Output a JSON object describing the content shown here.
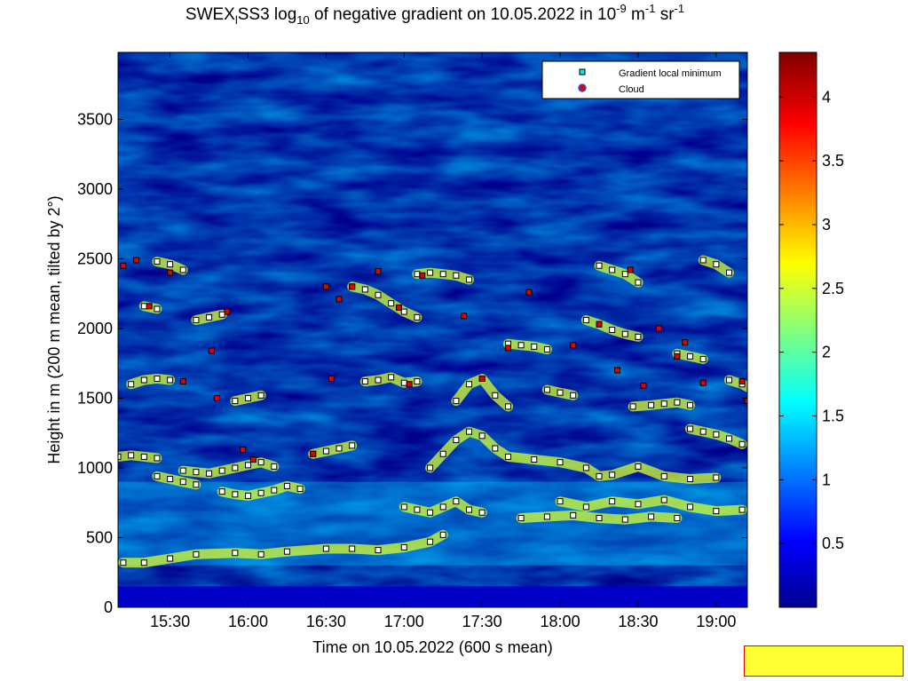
{
  "chart_data": {
    "type": "heatmap",
    "title_parts": {
      "prefix": "SWEX",
      "sub1": "l",
      "middle": "SS3 log",
      "sub2": "10",
      "after": " of negative gradient on 10.05.2022 in 10",
      "exp1": "-9",
      "unit1": " m",
      "exp2": "-1",
      "unit2": " sr",
      "exp3": "-1"
    },
    "xlabel": "Time on 10.05.2022 (600 s mean)",
    "ylabel": "Height in m (200 m mean, tilted by 2°)",
    "x_ticks": [
      "15:30",
      "16:00",
      "16:30",
      "17:00",
      "17:30",
      "18:00",
      "18:30",
      "19:00"
    ],
    "x_range_minutes": [
      910,
      1152
    ],
    "y_ticks": [
      0,
      500,
      1000,
      1500,
      2000,
      2500,
      3000,
      3500
    ],
    "y_range": [
      0,
      3980
    ],
    "colorbar": {
      "ticks": [
        "0.5",
        "1",
        "1.5",
        "2",
        "2.5",
        "3",
        "3.5",
        "4"
      ],
      "range": [
        0,
        4.35
      ],
      "colormap": "jet"
    },
    "legend": {
      "placement": "top-right",
      "entries": [
        {
          "label": "Gradient local minimum",
          "marker": "square",
          "color": "#00e5ee"
        },
        {
          "label": "Cloud",
          "marker": "circle",
          "color": "#e00000"
        }
      ]
    },
    "gradient_minimum_layers": [
      {
        "points": [
          [
            910,
            1080
          ],
          [
            915,
            1090
          ],
          [
            920,
            1080
          ],
          [
            925,
            1070
          ]
        ]
      },
      {
        "points": [
          [
            935,
            980
          ],
          [
            940,
            970
          ],
          [
            945,
            960
          ],
          [
            950,
            980
          ],
          [
            955,
            1000
          ],
          [
            960,
            1020
          ],
          [
            965,
            1040
          ],
          [
            970,
            1010
          ]
        ]
      },
      {
        "points": [
          [
            912,
            320
          ],
          [
            920,
            320
          ],
          [
            930,
            350
          ],
          [
            940,
            380
          ],
          [
            955,
            390
          ],
          [
            965,
            380
          ],
          [
            975,
            400
          ],
          [
            990,
            420
          ],
          [
            1000,
            420
          ],
          [
            1010,
            410
          ],
          [
            1020,
            430
          ],
          [
            1030,
            470
          ],
          [
            1035,
            520
          ]
        ]
      },
      {
        "points": [
          [
            925,
            940
          ],
          [
            930,
            920
          ],
          [
            935,
            900
          ],
          [
            940,
            880
          ]
        ]
      },
      {
        "points": [
          [
            950,
            830
          ],
          [
            955,
            810
          ],
          [
            960,
            800
          ],
          [
            965,
            820
          ],
          [
            970,
            840
          ],
          [
            975,
            870
          ],
          [
            980,
            850
          ]
        ]
      },
      {
        "points": [
          [
            985,
            1100
          ],
          [
            990,
            1120
          ],
          [
            995,
            1140
          ],
          [
            1000,
            1160
          ]
        ]
      },
      {
        "points": [
          [
            1020,
            720
          ],
          [
            1025,
            700
          ],
          [
            1030,
            680
          ],
          [
            1035,
            720
          ],
          [
            1040,
            760
          ],
          [
            1045,
            700
          ],
          [
            1050,
            680
          ]
        ]
      },
      {
        "points": [
          [
            1030,
            1000
          ],
          [
            1035,
            1100
          ],
          [
            1040,
            1200
          ],
          [
            1045,
            1260
          ],
          [
            1050,
            1230
          ],
          [
            1055,
            1140
          ],
          [
            1060,
            1080
          ],
          [
            1070,
            1060
          ],
          [
            1080,
            1040
          ],
          [
            1090,
            1000
          ],
          [
            1095,
            940
          ],
          [
            1100,
            950
          ],
          [
            1110,
            1010
          ],
          [
            1120,
            940
          ],
          [
            1130,
            920
          ],
          [
            1140,
            930
          ]
        ]
      },
      {
        "points": [
          [
            1080,
            760
          ],
          [
            1090,
            720
          ],
          [
            1100,
            760
          ],
          [
            1110,
            740
          ],
          [
            1120,
            770
          ],
          [
            1130,
            720
          ],
          [
            1140,
            690
          ],
          [
            1150,
            700
          ]
        ]
      },
      {
        "points": [
          [
            1065,
            640
          ],
          [
            1075,
            650
          ],
          [
            1085,
            660
          ],
          [
            1095,
            640
          ],
          [
            1105,
            630
          ],
          [
            1115,
            650
          ],
          [
            1125,
            640
          ]
        ]
      },
      {
        "points": [
          [
            1108,
            1440
          ],
          [
            1115,
            1450
          ],
          [
            1120,
            1460
          ],
          [
            1125,
            1470
          ],
          [
            1130,
            1450
          ]
        ]
      },
      {
        "points": [
          [
            1130,
            1280
          ],
          [
            1135,
            1260
          ],
          [
            1140,
            1240
          ],
          [
            1145,
            1210
          ],
          [
            1150,
            1170
          ]
        ]
      },
      {
        "points": [
          [
            915,
            1600
          ],
          [
            920,
            1630
          ],
          [
            925,
            1640
          ],
          [
            930,
            1630
          ]
        ]
      },
      {
        "points": [
          [
            1005,
            1620
          ],
          [
            1010,
            1630
          ],
          [
            1015,
            1650
          ],
          [
            1020,
            1610
          ],
          [
            1025,
            1620
          ]
        ]
      },
      {
        "points": [
          [
            1040,
            1480
          ],
          [
            1045,
            1600
          ],
          [
            1050,
            1640
          ],
          [
            1055,
            1520
          ],
          [
            1060,
            1440
          ]
        ]
      },
      {
        "points": [
          [
            1060,
            1890
          ],
          [
            1065,
            1880
          ],
          [
            1070,
            1870
          ],
          [
            1075,
            1850
          ]
        ]
      },
      {
        "points": [
          [
            1090,
            2060
          ],
          [
            1095,
            2030
          ],
          [
            1100,
            1990
          ],
          [
            1105,
            1960
          ],
          [
            1110,
            1940
          ]
        ]
      },
      {
        "points": [
          [
            1145,
            1630
          ],
          [
            1150,
            1600
          ],
          [
            1153,
            1570
          ]
        ]
      },
      {
        "points": [
          [
            920,
            2160
          ],
          [
            925,
            2140
          ]
        ]
      },
      {
        "points": [
          [
            925,
            2480
          ],
          [
            930,
            2460
          ],
          [
            935,
            2420
          ]
        ]
      },
      {
        "points": [
          [
            1000,
            2300
          ],
          [
            1005,
            2280
          ],
          [
            1010,
            2240
          ],
          [
            1015,
            2180
          ],
          [
            1020,
            2120
          ],
          [
            1025,
            2080
          ]
        ]
      },
      {
        "points": [
          [
            1025,
            2390
          ],
          [
            1030,
            2400
          ],
          [
            1035,
            2390
          ],
          [
            1040,
            2380
          ],
          [
            1045,
            2350
          ]
        ]
      },
      {
        "points": [
          [
            1095,
            2450
          ],
          [
            1100,
            2420
          ],
          [
            1105,
            2390
          ],
          [
            1110,
            2330
          ]
        ]
      },
      {
        "points": [
          [
            1125,
            1820
          ],
          [
            1130,
            1800
          ],
          [
            1135,
            1780
          ]
        ]
      },
      {
        "points": [
          [
            1135,
            2490
          ],
          [
            1140,
            2460
          ],
          [
            1145,
            2400
          ]
        ]
      },
      {
        "points": [
          [
            940,
            2060
          ],
          [
            945,
            2080
          ],
          [
            950,
            2100
          ]
        ]
      },
      {
        "points": [
          [
            955,
            1480
          ],
          [
            960,
            1500
          ],
          [
            965,
            1520
          ]
        ]
      },
      {
        "points": [
          [
            1075,
            1560
          ],
          [
            1080,
            1540
          ],
          [
            1085,
            1520
          ]
        ]
      }
    ],
    "cloud_points": [
      [
        912,
        2450
      ],
      [
        917,
        2490
      ],
      [
        922,
        2160
      ],
      [
        930,
        2400
      ],
      [
        935,
        1620
      ],
      [
        946,
        1840
      ],
      [
        948,
        1500
      ],
      [
        952,
        2120
      ],
      [
        958,
        1130
      ],
      [
        962,
        1060
      ],
      [
        985,
        1100
      ],
      [
        990,
        2300
      ],
      [
        992,
        1640
      ],
      [
        995,
        2210
      ],
      [
        1000,
        2300
      ],
      [
        1010,
        2410
      ],
      [
        1018,
        2150
      ],
      [
        1022,
        1600
      ],
      [
        1027,
        2380
      ],
      [
        1043,
        2090
      ],
      [
        1050,
        1640
      ],
      [
        1060,
        1860
      ],
      [
        1068,
        2260
      ],
      [
        1085,
        1880
      ],
      [
        1095,
        2030
      ],
      [
        1102,
        1700
      ],
      [
        1107,
        2420
      ],
      [
        1112,
        1590
      ],
      [
        1118,
        2000
      ],
      [
        1125,
        1800
      ],
      [
        1128,
        1900
      ],
      [
        1135,
        1610
      ],
      [
        1150,
        1620
      ],
      [
        1152,
        1480
      ]
    ]
  }
}
